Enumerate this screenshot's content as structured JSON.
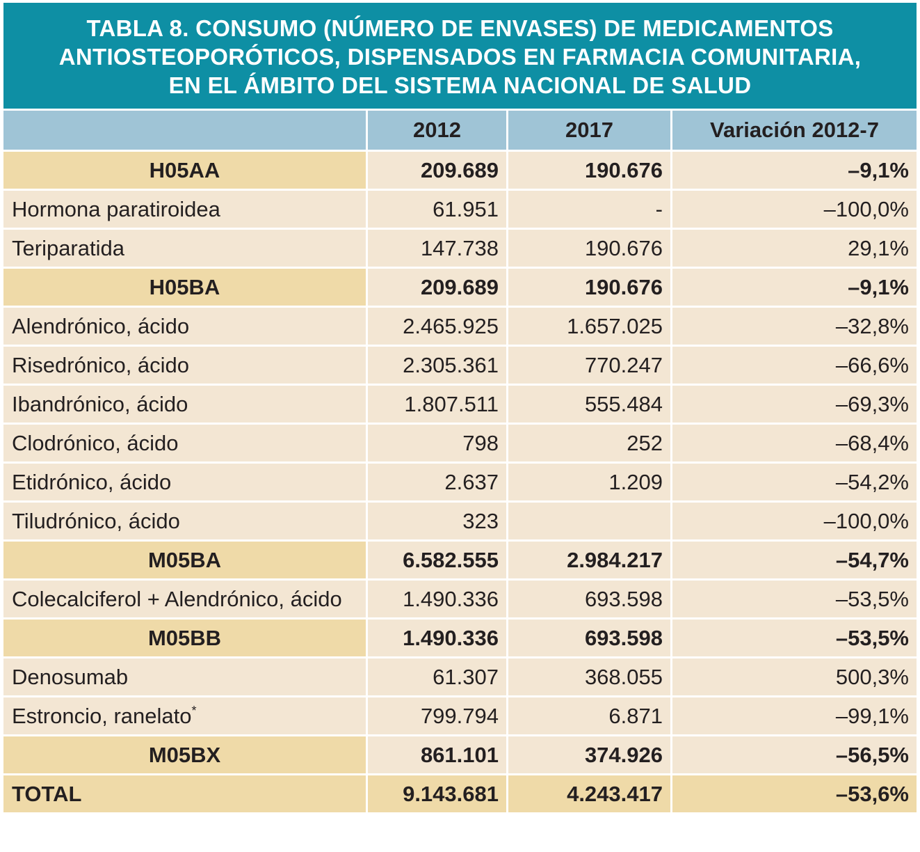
{
  "title": {
    "line1": "TABLA 8. CONSUMO (NÚMERO DE ENVASES) DE MEDICAMENTOS",
    "line2": "ANTIOSTEOPORÓTICOS, DISPENSADOS EN FARMACIA COMUNITARIA,",
    "line3": "EN EL ÁMBITO DEL SISTEMA NACIONAL DE SALUD"
  },
  "header": {
    "col1": "",
    "col2": "2012",
    "col3": "2017",
    "col4": "Variación 2012-7"
  },
  "rows": [
    {
      "type": "group",
      "name": "H05AA",
      "y2012": "209.689",
      "y2017": "190.676",
      "var": "–9,1%"
    },
    {
      "type": "item",
      "name": "Hormona paratiroidea",
      "y2012": "61.951",
      "y2017": "-",
      "var": "–100,0%"
    },
    {
      "type": "item",
      "name": "Teriparatida",
      "y2012": "147.738",
      "y2017": "190.676",
      "var": "29,1%"
    },
    {
      "type": "group",
      "name": "H05BA",
      "y2012": "209.689",
      "y2017": "190.676",
      "var": "–9,1%"
    },
    {
      "type": "item",
      "name": "Alendrónico, ácido",
      "y2012": "2.465.925",
      "y2017": "1.657.025",
      "var": "–32,8%"
    },
    {
      "type": "item",
      "name": "Risedrónico, ácido",
      "y2012": "2.305.361",
      "y2017": "770.247",
      "var": "–66,6%"
    },
    {
      "type": "item",
      "name": "Ibandrónico, ácido",
      "y2012": "1.807.511",
      "y2017": "555.484",
      "var": "–69,3%"
    },
    {
      "type": "item",
      "name": "Clodrónico, ácido",
      "y2012": "798",
      "y2017": "252",
      "var": "–68,4%"
    },
    {
      "type": "item",
      "name": "Etidrónico, ácido",
      "y2012": "2.637",
      "y2017": "1.209",
      "var": "–54,2%"
    },
    {
      "type": "item",
      "name": "Tiludrónico, ácido",
      "y2012": "323",
      "y2017": "",
      "var": "–100,0%"
    },
    {
      "type": "group",
      "name": "M05BA",
      "y2012": "6.582.555",
      "y2017": "2.984.217",
      "var": "–54,7%"
    },
    {
      "type": "item",
      "name": "Colecalciferol + Alendrónico, ácido",
      "y2012": "1.490.336",
      "y2017": "693.598",
      "var": "–53,5%"
    },
    {
      "type": "group",
      "name": "M05BB",
      "y2012": "1.490.336",
      "y2017": "693.598",
      "var": "–53,5%"
    },
    {
      "type": "item",
      "name": "Denosumab",
      "y2012": "61.307",
      "y2017": "368.055",
      "var": "500,3%"
    },
    {
      "type": "item",
      "name": "Estroncio, ranelato",
      "note": "*",
      "y2012": "799.794",
      "y2017": "6.871",
      "var": "–99,1%"
    },
    {
      "type": "group",
      "name": "M05BX",
      "y2012": "861.101",
      "y2017": "374.926",
      "var": "–56,5%"
    },
    {
      "type": "total",
      "name": "TOTAL",
      "y2012": "9.143.681",
      "y2017": "4.243.417",
      "var": "–53,6%"
    }
  ]
}
